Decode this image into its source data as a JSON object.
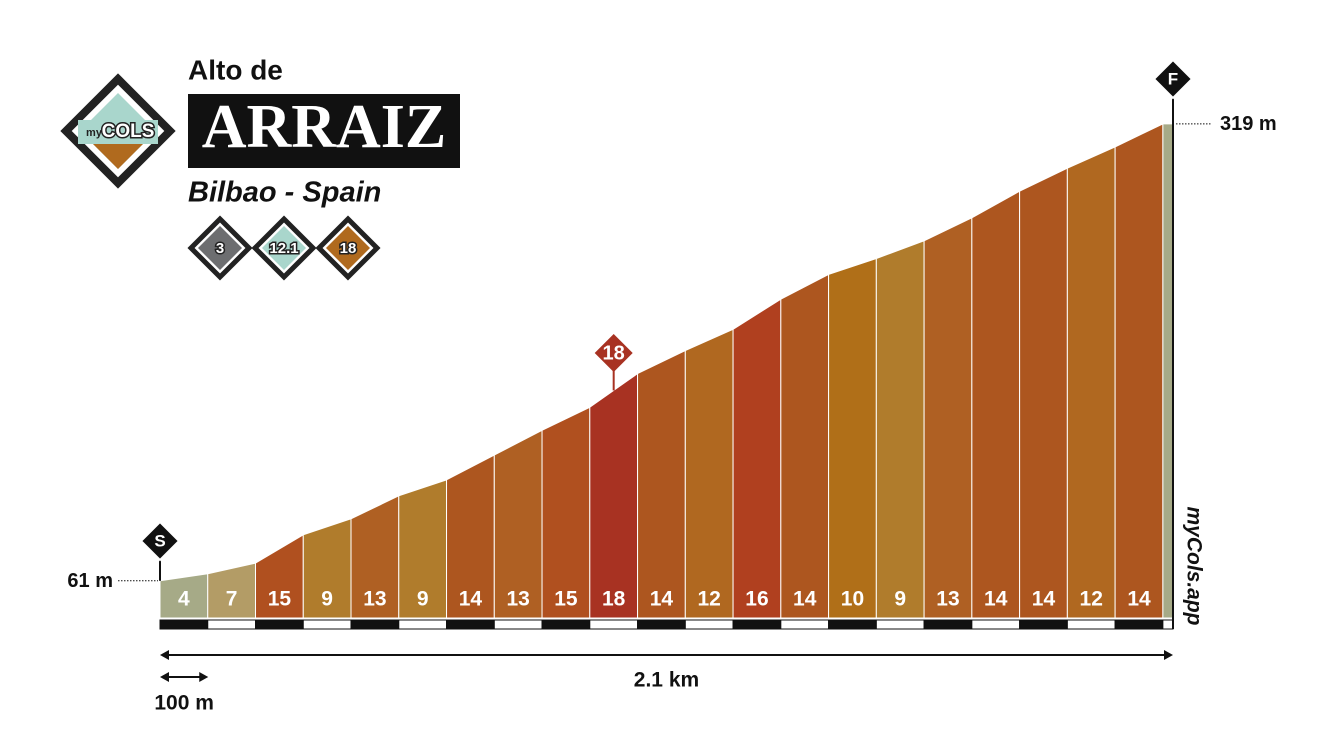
{
  "chart_data": {
    "type": "profile",
    "logo": {
      "prefix": "my",
      "name": "COLS"
    },
    "title_prefix": "Alto de",
    "title": "ARRAIZ",
    "subtitle": "Bilbao - Spain",
    "badges": [
      {
        "value": 3,
        "color": "#6d6e70"
      },
      {
        "value": 12.1,
        "color": "#a9d6cc"
      },
      {
        "value": 18,
        "color": "#b06a1e"
      }
    ],
    "start_label": "S",
    "finish_label": "F",
    "x": [
      0,
      99,
      198,
      297,
      396,
      495,
      594,
      693,
      792,
      891,
      990,
      1089,
      1188,
      1287,
      1386,
      1485,
      1584,
      1683,
      1782,
      1881,
      1980,
      2079,
      2100
    ],
    "elevation": [
      61,
      65,
      71,
      87,
      96,
      109,
      118,
      132,
      146,
      159,
      178,
      191,
      203,
      220,
      234,
      243,
      253,
      266,
      281,
      294,
      306,
      319,
      319
    ],
    "gradients": [
      4,
      7,
      15,
      9,
      13,
      9,
      14,
      13,
      15,
      18,
      14,
      12,
      16,
      14,
      10,
      9,
      13,
      14,
      14,
      12,
      14,
      null
    ],
    "colors": [
      "#a6aa87",
      "#b39c66",
      "#b0501f",
      "#b07c2c",
      "#af6023",
      "#b07c2c",
      "#ad561f",
      "#af6023",
      "#b0501f",
      "#a83222",
      "#ad561f",
      "#b06820",
      "#b0401f",
      "#ad561f",
      "#b06f18",
      "#b07c2c",
      "#af6023",
      "#ad561f",
      "#ad561f",
      "#b06820",
      "#ad561f",
      "#a6aa87"
    ],
    "xlim": [
      0,
      2100
    ],
    "ylim": [
      40,
      350
    ],
    "elevation_labels": [
      {
        "value": 61,
        "label": "61 m"
      },
      {
        "value": 319,
        "label": "319 m"
      }
    ],
    "max_gradient": 18,
    "distance_label": "2.1 km",
    "scale": {
      "value": 100,
      "label": "100 m"
    },
    "watermark": "myCols.app"
  }
}
